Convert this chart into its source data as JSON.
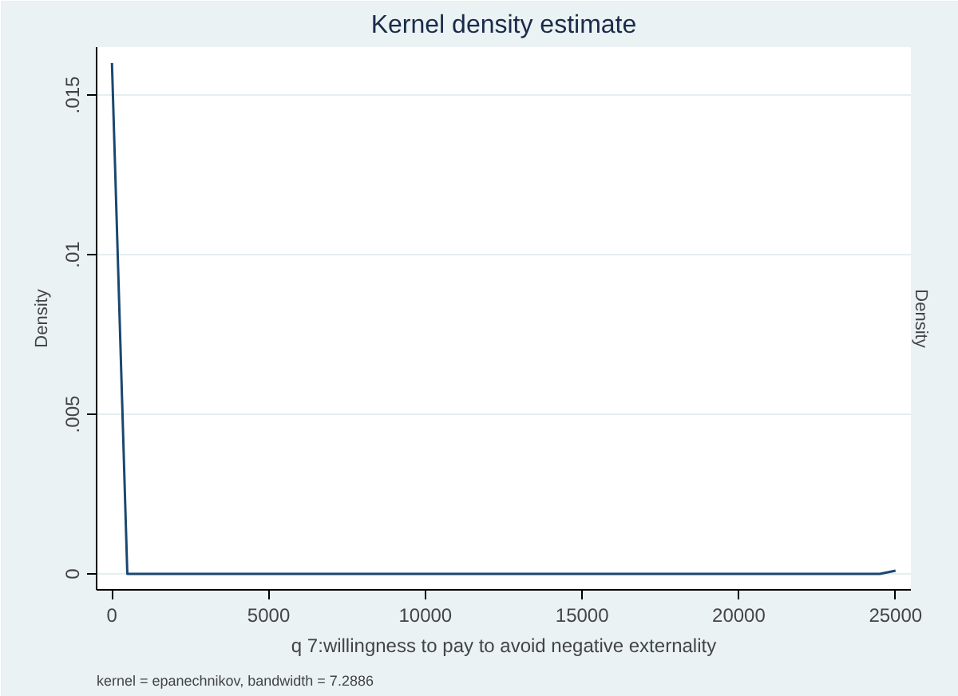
{
  "chart_data": {
    "type": "line",
    "title": "Kernel density estimate",
    "xlabel": "q 7:willingness to pay to avoid negative externality",
    "ylabel": "Density",
    "y2label": "Density",
    "annotations": [
      "kernel = epanechnikov, bandwidth = 7.2886"
    ],
    "series": [
      {
        "color": "#1a476f",
        "x": [
          0,
          490,
          5000,
          10000,
          15000,
          20000,
          23500,
          24500,
          25000
        ],
        "values": [
          0.016,
          0,
          0,
          0,
          0,
          0,
          0,
          0,
          0.0001
        ]
      }
    ],
    "xlim": [
      -490,
      25490
    ],
    "ylim": [
      -0.0005,
      0.0165
    ],
    "xticks": [
      0,
      5000,
      10000,
      15000,
      20000,
      25000
    ],
    "yticks": [
      {
        "value": 0,
        "label": "0"
      },
      {
        "value": 0.005,
        "label": ".005"
      },
      {
        "value": 0.01,
        "label": ".01"
      },
      {
        "value": 0.015,
        "label": ".015"
      }
    ],
    "grid": "y",
    "marker": "none",
    "line_style": "solid"
  }
}
